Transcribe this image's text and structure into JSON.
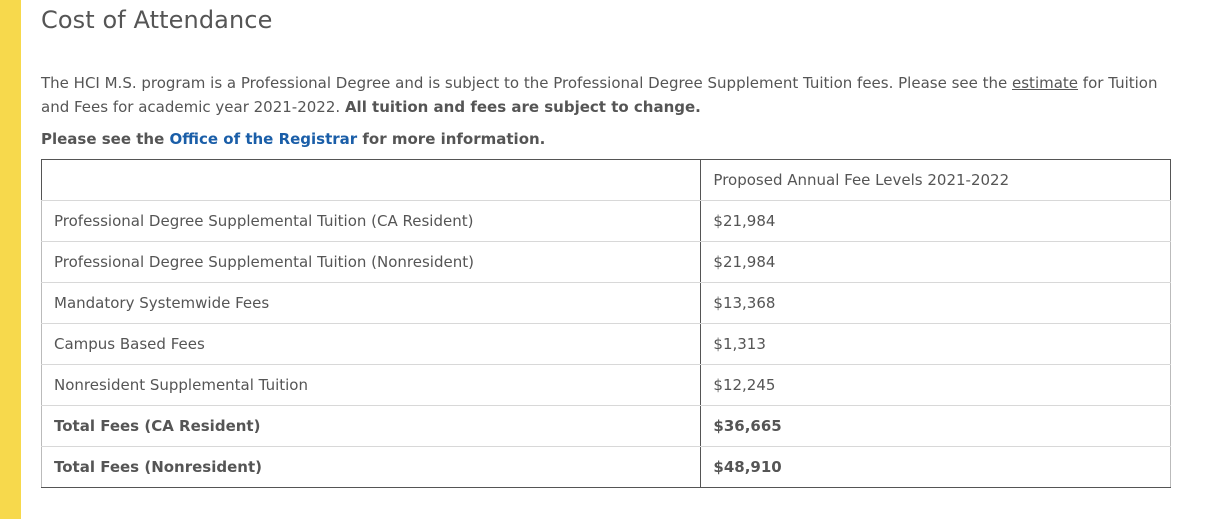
{
  "page": {
    "title": "Cost of Attendance",
    "accent_color": "#f7d94c",
    "link_color": "#1a5ea8"
  },
  "intro": {
    "text_before_link": "The HCI M.S. program is a Professional Degree and is subject to the Professional Degree Supplement Tuition fees. Please see the ",
    "estimate_link": "estimate",
    "text_after_link": " for Tuition and Fees for academic year 2021-2022. ",
    "bold_notice": "All tuition and fees are subject to change."
  },
  "more_info": {
    "prefix": "Please see the ",
    "registrar_link": "Office of the Registrar",
    "suffix": " for more information."
  },
  "fees_table": {
    "header": {
      "item": "",
      "amount": "Proposed Annual Fee Levels 2021-2022"
    },
    "rows": [
      {
        "item": "Professional Degree Supplemental Tuition (CA Resident)",
        "amount": "$21,984"
      },
      {
        "item": "Professional Degree Supplemental Tuition (Nonresident)",
        "amount": "$21,984"
      },
      {
        "item": "Mandatory Systemwide Fees",
        "amount": "$13,368"
      },
      {
        "item": "Campus Based Fees",
        "amount": "$1,313"
      },
      {
        "item": "Nonresident Supplemental Tuition",
        "amount": "$12,245"
      },
      {
        "item": "Total Fees (CA Resident)",
        "amount": "$36,665"
      },
      {
        "item": "Total Fees (Nonresident)",
        "amount": "$48,910"
      }
    ]
  }
}
